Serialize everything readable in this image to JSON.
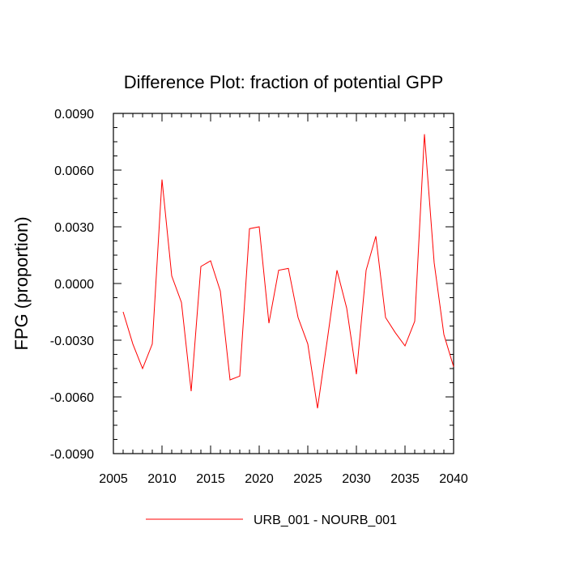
{
  "chart_data": {
    "type": "line",
    "title": "Difference Plot: fraction of potential GPP",
    "xlabel": "",
    "ylabel": "FPG  (proportion)",
    "xlim": [
      2005,
      2040
    ],
    "ylim": [
      -0.009,
      0.009
    ],
    "x_ticks": [
      "2005",
      "2010",
      "2015",
      "2020",
      "2025",
      "2030",
      "2035",
      "2040"
    ],
    "y_ticks": [
      "-0.0090",
      "-0.0060",
      "-0.0030",
      "0.0000",
      "0.0030",
      "0.0060",
      "0.0090"
    ],
    "legend_position": "bottom",
    "grid": false,
    "series": [
      {
        "name": "URB_001 - NOURB_001",
        "color": "#ff0000",
        "x": [
          2006,
          2007,
          2008,
          2009,
          2010,
          2011,
          2012,
          2013,
          2014,
          2015,
          2016,
          2017,
          2018,
          2019,
          2020,
          2021,
          2022,
          2023,
          2024,
          2025,
          2026,
          2027,
          2028,
          2029,
          2030,
          2031,
          2032,
          2033,
          2034,
          2035,
          2036,
          2037,
          2038,
          2039,
          2040
        ],
        "values": [
          -0.0015,
          -0.0032,
          -0.0045,
          -0.0032,
          0.0055,
          0.0004,
          -0.001,
          -0.0057,
          0.0009,
          0.0012,
          -0.0004,
          -0.0051,
          -0.0049,
          0.0029,
          0.003,
          -0.0021,
          0.0007,
          0.0008,
          -0.0018,
          -0.0032,
          -0.0066,
          -0.003,
          0.0007,
          -0.0013,
          -0.0048,
          0.0007,
          0.0025,
          -0.0018,
          -0.0026,
          -0.0033,
          -0.002,
          0.0079,
          0.0011,
          -0.0027,
          -0.0044
        ]
      }
    ]
  }
}
